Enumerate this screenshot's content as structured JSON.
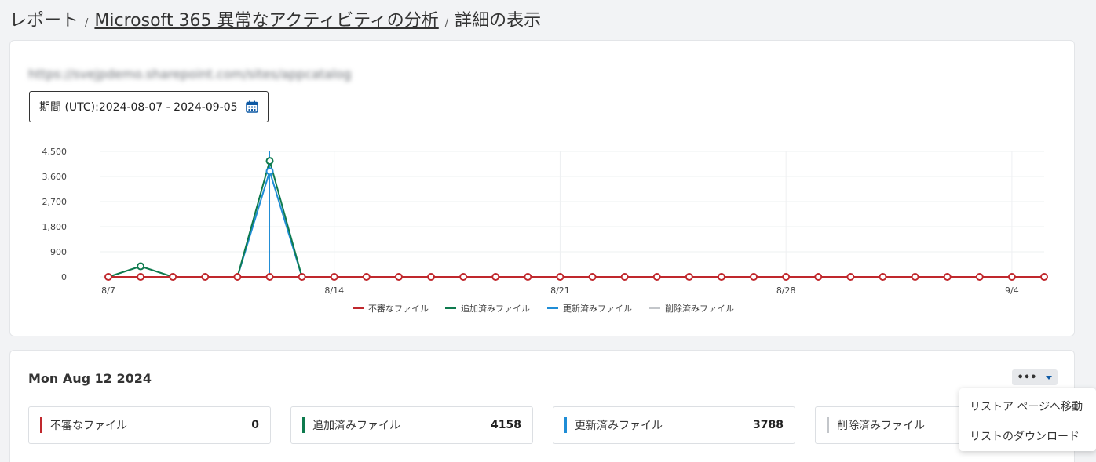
{
  "breadcrumb": {
    "item1": "レポート",
    "sep1": "/",
    "item2": "Microsoft 365 異常なアクティビティの分析",
    "sep2": "/",
    "item3": "詳細の表示"
  },
  "site_url": "https://svejpdemo.sharepoint.com/sites/appcatalog",
  "date_range": {
    "label": "期間 (UTC):2024-08-07  - 2024-09-05",
    "icon": "calendar-icon"
  },
  "colors": {
    "suspicious": "#c0282d",
    "added": "#0e7a4e",
    "updated": "#1f8dd6",
    "deleted": "#c3c6ca",
    "accent": "#0f5aa5"
  },
  "chart_data": {
    "type": "line",
    "x": [
      "8/7",
      "8/8",
      "8/9",
      "8/10",
      "8/11",
      "8/12",
      "8/13",
      "8/14",
      "8/15",
      "8/16",
      "8/17",
      "8/18",
      "8/19",
      "8/20",
      "8/21",
      "8/22",
      "8/23",
      "8/24",
      "8/25",
      "8/26",
      "8/27",
      "8/28",
      "8/29",
      "8/30",
      "8/31",
      "9/1",
      "9/2",
      "9/3",
      "9/4",
      "9/5"
    ],
    "x_tick_labels": [
      "8/7",
      "8/14",
      "8/21",
      "8/28",
      "9/4"
    ],
    "y_tick_labels": [
      "4,500",
      "3,600",
      "2,700",
      "1,800",
      "900",
      "0"
    ],
    "ylim": [
      0,
      4500
    ],
    "series": [
      {
        "name": "不審なファイル",
        "color": "#c0282d",
        "values": [
          0,
          0,
          0,
          0,
          0,
          0,
          0,
          0,
          0,
          0,
          0,
          0,
          0,
          0,
          0,
          0,
          0,
          0,
          0,
          0,
          0,
          0,
          0,
          0,
          0,
          0,
          0,
          0,
          0,
          0
        ]
      },
      {
        "name": "追加済みファイル",
        "color": "#0e7a4e",
        "values": [
          0,
          380,
          0,
          0,
          0,
          4158,
          0,
          0,
          0,
          0,
          0,
          0,
          0,
          0,
          0,
          0,
          0,
          0,
          0,
          0,
          0,
          0,
          0,
          0,
          0,
          0,
          0,
          0,
          0,
          0
        ]
      },
      {
        "name": "更新済みファイル",
        "color": "#1f8dd6",
        "values": [
          0,
          0,
          0,
          0,
          0,
          3788,
          0,
          0,
          0,
          0,
          0,
          0,
          0,
          0,
          0,
          0,
          0,
          0,
          0,
          0,
          0,
          0,
          0,
          0,
          0,
          0,
          0,
          0,
          0,
          0
        ]
      },
      {
        "name": "削除済みファイル",
        "color": "#c3c6ca",
        "values": [
          0,
          0,
          0,
          0,
          0,
          0,
          0,
          0,
          0,
          0,
          0,
          0,
          0,
          0,
          0,
          0,
          0,
          0,
          0,
          0,
          0,
          0,
          0,
          0,
          0,
          0,
          0,
          0,
          0,
          0
        ]
      }
    ],
    "highlight_x": "8/12",
    "grid": true,
    "legend_position": "bottom"
  },
  "detail": {
    "date_title": "Mon Aug 12 2024",
    "more_label": "•••",
    "stats": [
      {
        "label": "不審なファイル",
        "value": "0"
      },
      {
        "label": "追加済みファイル",
        "value": "4158"
      },
      {
        "label": "更新済みファイル",
        "value": "3788"
      },
      {
        "label": "削除済みファイル",
        "value": ""
      }
    ]
  },
  "menu": {
    "items": [
      "リストア ページへ移動",
      "リストのダウンロード"
    ]
  }
}
